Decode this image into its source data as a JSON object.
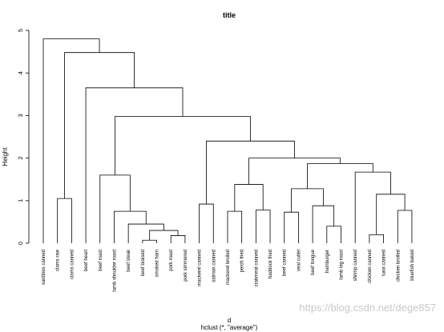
{
  "chart_data": {
    "type": "dendrogram",
    "title": "title",
    "ylabel": "Height",
    "xlabel": "d",
    "sublabel": "hclust (*, \"average\")",
    "ylim": [
      0,
      5
    ],
    "yticks": [
      0,
      1,
      2,
      3,
      4,
      5
    ],
    "leaves": [
      "sardines canned",
      "clams raw",
      "clams canned",
      "beef heart",
      "beef roast",
      "lamb shoulder roast",
      "beef steak",
      "beef braised",
      "smoked ham",
      "pork roast",
      "pork simmered",
      "mackerel canned",
      "salmon canned",
      "mackerel broiled",
      "perch fried",
      "crabmeat canned",
      "haddock fried",
      "beef canned",
      "veal cutlet",
      "beef tongue",
      "hamburger",
      "lamb leg roast",
      "shrimp canned",
      "chicken canned",
      "tuna canned",
      "chicken broiled",
      "bluefish baked"
    ],
    "merges": [
      {
        "a": "L:7",
        "b": "L:8",
        "h": 0.07
      },
      {
        "a": "L:9",
        "b": "L:10",
        "h": 0.18
      },
      {
        "a": "L:23",
        "b": "L:24",
        "h": 0.2
      },
      {
        "a": "M:0",
        "b": "M:1",
        "h": 0.3
      },
      {
        "a": "L:20",
        "b": "L:21",
        "h": 0.4
      },
      {
        "a": "L:6",
        "b": "M:3",
        "h": 0.45
      },
      {
        "a": "L:17",
        "b": "L:18",
        "h": 0.73
      },
      {
        "a": "L:13",
        "b": "L:14",
        "h": 0.75
      },
      {
        "a": "L:5",
        "b": "M:5",
        "h": 0.75
      },
      {
        "a": "L:25",
        "b": "L:26",
        "h": 0.77
      },
      {
        "a": "L:15",
        "b": "L:16",
        "h": 0.78
      },
      {
        "a": "L:19",
        "b": "M:4",
        "h": 0.88
      },
      {
        "a": "L:11",
        "b": "L:12",
        "h": 0.92
      },
      {
        "a": "L:1",
        "b": "L:2",
        "h": 1.05
      },
      {
        "a": "M:2",
        "b": "M:9",
        "h": 1.15
      },
      {
        "a": "M:6",
        "b": "M:11",
        "h": 1.28
      },
      {
        "a": "M:7",
        "b": "M:10",
        "h": 1.38
      },
      {
        "a": "L:4",
        "b": "M:8",
        "h": 1.6
      },
      {
        "a": "L:22",
        "b": "M:14",
        "h": 1.67
      },
      {
        "a": "M:15",
        "b": "M:18",
        "h": 1.87
      },
      {
        "a": "M:16",
        "b": "M:19",
        "h": 2.0
      },
      {
        "a": "M:12",
        "b": "M:20",
        "h": 2.4
      },
      {
        "a": "M:17",
        "b": "M:21",
        "h": 2.98
      },
      {
        "a": "L:3",
        "b": "M:22",
        "h": 3.65
      },
      {
        "a": "M:13",
        "b": "M:23",
        "h": 4.48
      },
      {
        "a": "L:0",
        "b": "M:24",
        "h": 4.8
      }
    ]
  },
  "watermark": "https://blog.csdn.net/dege857"
}
